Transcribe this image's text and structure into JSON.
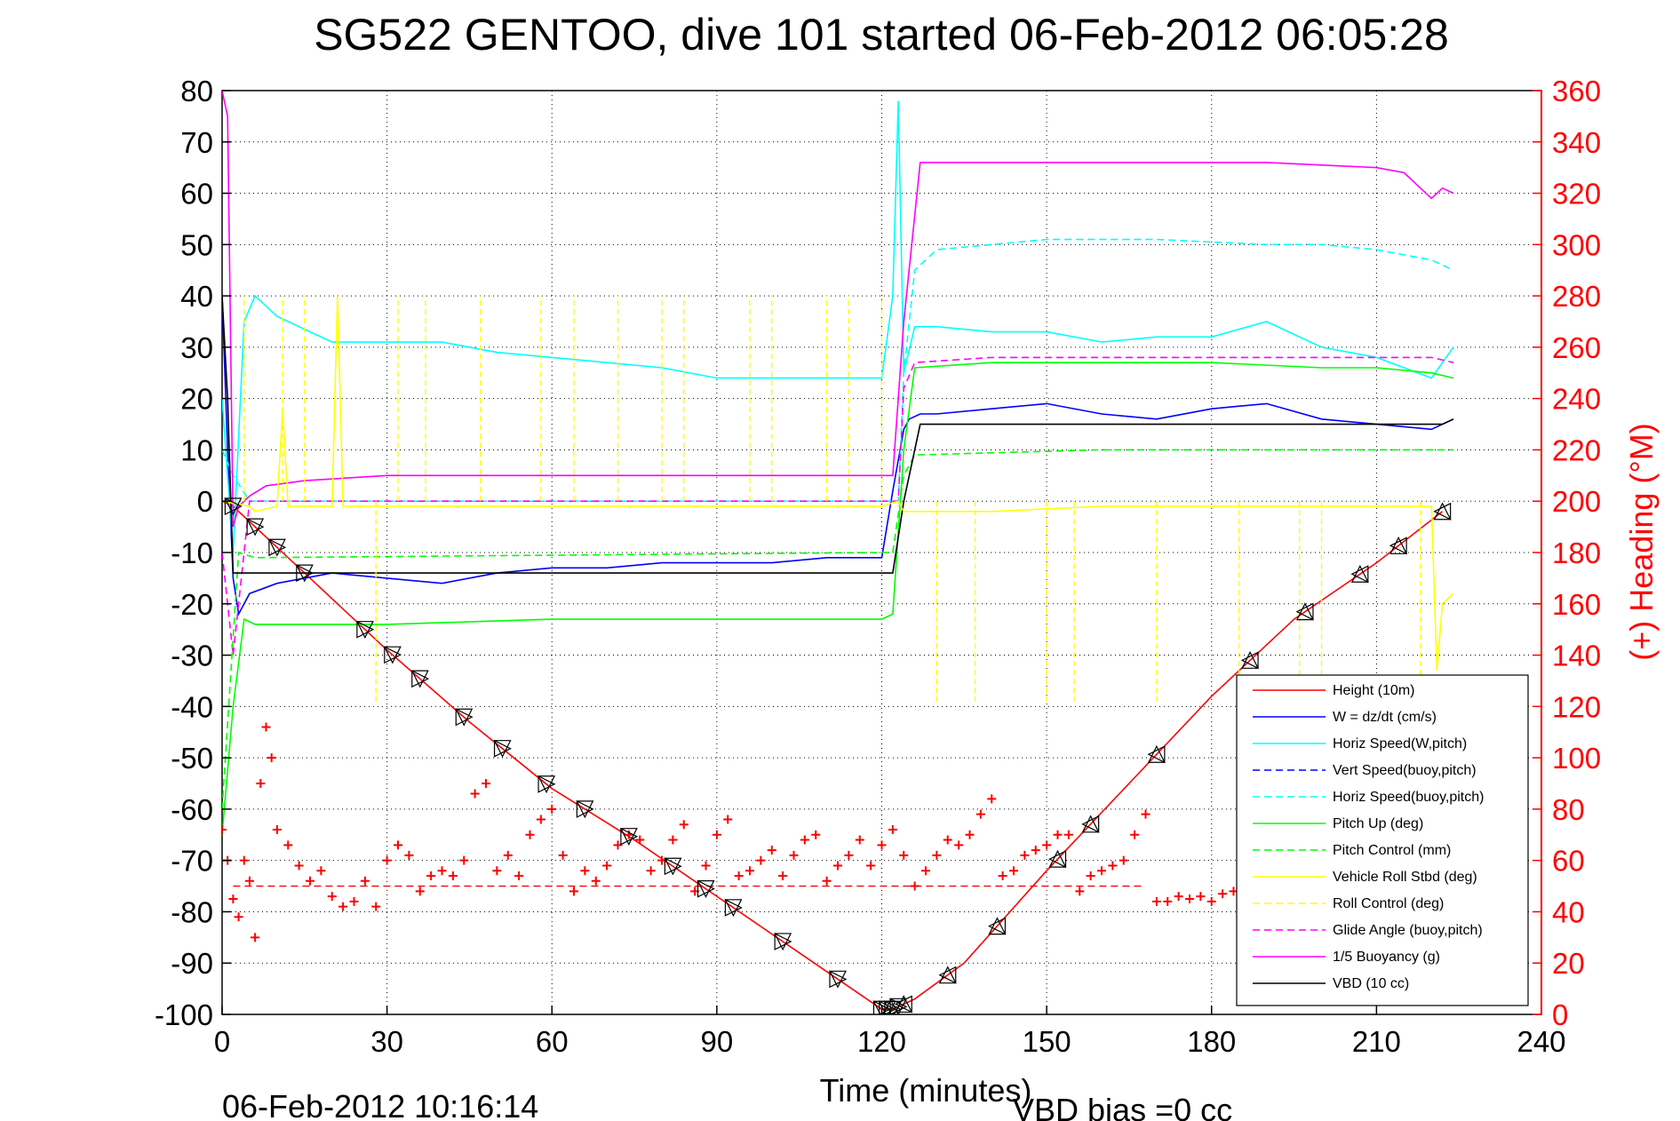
{
  "chart_data": {
    "type": "line",
    "title": "SG522 GENTOO, dive 101 started 06-Feb-2012 06:05:28",
    "xlabel": "Time (minutes)",
    "ylabel_right": "(+) Heading (°M)",
    "footer_left": "06-Feb-2012 10:16:14",
    "footer_right": "VBD bias =0 cc",
    "xlim": [
      0,
      240
    ],
    "ylim": [
      -100,
      80
    ],
    "y2lim": [
      0,
      360
    ],
    "xticks": [
      "0",
      "30",
      "60",
      "90",
      "120",
      "150",
      "180",
      "210",
      "240"
    ],
    "yticks": [
      "80",
      "70",
      "60",
      "50",
      "40",
      "30",
      "20",
      "10",
      "0",
      "-10",
      "-20",
      "-30",
      "-40",
      "-50",
      "-60",
      "-70",
      "-80",
      "-90",
      "-100"
    ],
    "y2ticks": [
      "360",
      "340",
      "320",
      "300",
      "280",
      "260",
      "240",
      "220",
      "200",
      "180",
      "160",
      "140",
      "120",
      "100",
      "80",
      "60",
      "40",
      "20",
      "0"
    ],
    "grid": true,
    "legend_position": "bottom-right",
    "colors": {
      "height": "#ff0000",
      "w": "#0000ff",
      "horiz_speed": "#00ffff",
      "vert_speed_buoy": "#0000ff",
      "horiz_speed_buoy": "#00ffff",
      "pitch": "#00ff00",
      "pitch_control": "#00ff00",
      "roll": "#ffff00",
      "roll_control": "#ffff00",
      "glide_angle": "#ff00ff",
      "buoyancy": "#ff00ff",
      "vbd": "#000000",
      "heading": "#ff0000",
      "axis_right": "#ff0000"
    },
    "legend": [
      {
        "name": "Height (10m)",
        "color": "#ff0000",
        "dash": false
      },
      {
        "name": "W = dz/dt (cm/s)",
        "color": "#0000ff",
        "dash": false
      },
      {
        "name": "Horiz Speed(W,pitch)",
        "color": "#00ffff",
        "dash": false
      },
      {
        "name": "Vert Speed(buoy,pitch)",
        "color": "#0000ff",
        "dash": true
      },
      {
        "name": "Horiz Speed(buoy,pitch)",
        "color": "#00ffff",
        "dash": true
      },
      {
        "name": "Pitch Up (deg)",
        "color": "#00ff00",
        "dash": false
      },
      {
        "name": "Pitch Control (mm)",
        "color": "#00ff00",
        "dash": true
      },
      {
        "name": "Vehicle Roll Stbd (deg)",
        "color": "#ffff00",
        "dash": false
      },
      {
        "name": "Roll Control (deg)",
        "color": "#ffff00",
        "dash": true
      },
      {
        "name": "Glide Angle (buoy,pitch)",
        "color": "#ff00ff",
        "dash": true
      },
      {
        "name": "1/5 Buoyancy (g)",
        "color": "#ff00ff",
        "dash": false
      },
      {
        "name": "VBD (10 cc)",
        "color": "#000000",
        "dash": false
      }
    ],
    "series": [
      {
        "key": "height",
        "x": [
          0,
          2,
          15,
          30,
          45,
          60,
          75,
          90,
          105,
          120,
          122,
          124,
          126,
          135,
          150,
          165,
          180,
          195,
          210,
          222
        ],
        "y": [
          0,
          -1,
          -14,
          -29,
          -43,
          -56,
          -66,
          -77,
          -88,
          -99,
          -99,
          -98,
          -97,
          -90,
          -72,
          -55,
          -38,
          -23,
          -12,
          -2
        ]
      },
      {
        "key": "w",
        "x": [
          0,
          1,
          2,
          3,
          5,
          10,
          20,
          30,
          40,
          50,
          60,
          70,
          80,
          90,
          100,
          110,
          120,
          122,
          124,
          125,
          127,
          130,
          140,
          150,
          160,
          170,
          180,
          190,
          200,
          210,
          220,
          224
        ],
        "y": [
          40,
          10,
          -15,
          -22,
          -18,
          -16,
          -14,
          -15,
          -16,
          -14,
          -13,
          -13,
          -12,
          -12,
          -12,
          -11,
          -11,
          2,
          14,
          16,
          17,
          17,
          18,
          19,
          17,
          16,
          18,
          19,
          16,
          15,
          14,
          16
        ]
      },
      {
        "key": "horiz_speed",
        "x": [
          0,
          2,
          4,
          6,
          10,
          20,
          30,
          40,
          50,
          60,
          70,
          80,
          90,
          100,
          110,
          120,
          122,
          123,
          124,
          126,
          130,
          140,
          150,
          160,
          170,
          180,
          190,
          200,
          210,
          220,
          224
        ],
        "y": [
          20,
          -10,
          35,
          40,
          36,
          31,
          31,
          31,
          29,
          28,
          27,
          26,
          24,
          24,
          24,
          24,
          40,
          78,
          25,
          34,
          34,
          33,
          33,
          31,
          32,
          32,
          35,
          30,
          28,
          24,
          30
        ]
      },
      {
        "key": "horiz_speed_buoy",
        "x": [
          0,
          2,
          5,
          123,
          124,
          126,
          130,
          150,
          170,
          190,
          200,
          210,
          215,
          220,
          224
        ],
        "y": [
          10,
          5,
          0,
          0,
          25,
          45,
          49,
          51,
          51,
          50,
          50,
          49,
          48,
          47,
          45
        ]
      },
      {
        "key": "glide_angle",
        "x": [
          0,
          2,
          5,
          123,
          124,
          126,
          140,
          160,
          180,
          200,
          210,
          220,
          224
        ],
        "y": [
          -10,
          -30,
          0,
          0,
          22,
          27,
          28,
          28,
          28,
          28,
          28,
          28,
          27
        ]
      },
      {
        "key": "pitch",
        "x": [
          0,
          2,
          4,
          6,
          10,
          30,
          60,
          90,
          120,
          122,
          124,
          126,
          140,
          160,
          180,
          200,
          210,
          220,
          224
        ],
        "y": [
          -65,
          -40,
          -23,
          -24,
          -24,
          -24,
          -23,
          -23,
          -23,
          -22,
          10,
          26,
          27,
          27,
          27,
          26,
          26,
          25,
          24
        ]
      },
      {
        "key": "pitch_control",
        "x": [
          0,
          3,
          6,
          120,
          122,
          124,
          126,
          160,
          200,
          224
        ],
        "y": [
          -60,
          -10,
          -11,
          -10,
          -10,
          5,
          9,
          10,
          10,
          10
        ]
      },
      {
        "key": "buoyancy",
        "x": [
          0,
          1,
          2,
          3,
          5,
          8,
          15,
          30,
          60,
          90,
          120,
          122,
          124,
          127,
          130,
          160,
          190,
          210,
          215,
          218,
          220,
          222,
          224
        ],
        "y": [
          80,
          75,
          -5,
          -1,
          1,
          3,
          4,
          5,
          5,
          5,
          5,
          5,
          35,
          66,
          66,
          66,
          66,
          65,
          64,
          61,
          59,
          61,
          60
        ]
      },
      {
        "key": "vbd",
        "x": [
          0,
          1,
          2,
          3,
          4,
          120,
          122,
          124,
          127,
          180,
          210,
          222,
          224
        ],
        "y": [
          40,
          20,
          -14,
          -14,
          -14,
          -14,
          -14,
          0,
          15,
          15,
          15,
          15,
          16
        ]
      },
      {
        "key": "roll",
        "x": [
          0,
          5,
          6,
          10,
          11,
          12,
          20,
          21,
          22,
          30,
          40,
          60,
          80,
          90,
          100,
          120,
          123,
          124,
          125,
          130,
          135,
          140,
          160,
          200,
          210,
          220,
          221,
          222,
          224
        ],
        "y": [
          0,
          -1,
          -2,
          -1,
          18,
          -1,
          -1,
          40,
          -1,
          -1,
          -1,
          -1,
          -1,
          -1,
          -1,
          -1,
          0,
          -2,
          -2,
          -2,
          -2,
          -2,
          -1,
          -1,
          -1,
          -1,
          -33,
          -20,
          -18
        ]
      }
    ],
    "roll_spikes_up": [
      4,
      11,
      15,
      32,
      37,
      47,
      58,
      64,
      72,
      80,
      84,
      96,
      100,
      110,
      114,
      120
    ],
    "roll_spikes_down": [
      28,
      130,
      137,
      150,
      155,
      170,
      185,
      196,
      200,
      218
    ],
    "heading_points": [
      [
        0,
        72
      ],
      [
        1,
        60
      ],
      [
        2,
        45
      ],
      [
        3,
        38
      ],
      [
        4,
        60
      ],
      [
        5,
        52
      ],
      [
        6,
        30
      ],
      [
        7,
        90
      ],
      [
        8,
        112
      ],
      [
        9,
        100
      ],
      [
        10,
        72
      ],
      [
        12,
        66
      ],
      [
        14,
        58
      ],
      [
        16,
        52
      ],
      [
        18,
        56
      ],
      [
        20,
        46
      ],
      [
        22,
        42
      ],
      [
        24,
        44
      ],
      [
        26,
        52
      ],
      [
        28,
        42
      ],
      [
        30,
        60
      ],
      [
        32,
        66
      ],
      [
        34,
        62
      ],
      [
        36,
        48
      ],
      [
        38,
        54
      ],
      [
        40,
        56
      ],
      [
        42,
        54
      ],
      [
        44,
        60
      ],
      [
        46,
        86
      ],
      [
        48,
        90
      ],
      [
        50,
        56
      ],
      [
        52,
        62
      ],
      [
        54,
        54
      ],
      [
        56,
        70
      ],
      [
        58,
        76
      ],
      [
        60,
        80
      ],
      [
        62,
        62
      ],
      [
        64,
        48
      ],
      [
        66,
        56
      ],
      [
        68,
        52
      ],
      [
        70,
        58
      ],
      [
        72,
        66
      ],
      [
        74,
        70
      ],
      [
        76,
        68
      ],
      [
        78,
        56
      ],
      [
        80,
        60
      ],
      [
        82,
        68
      ],
      [
        84,
        74
      ],
      [
        86,
        48
      ],
      [
        88,
        58
      ],
      [
        90,
        70
      ],
      [
        92,
        76
      ],
      [
        94,
        54
      ],
      [
        96,
        56
      ],
      [
        98,
        60
      ],
      [
        100,
        64
      ],
      [
        102,
        54
      ],
      [
        104,
        62
      ],
      [
        106,
        68
      ],
      [
        108,
        70
      ],
      [
        110,
        52
      ],
      [
        112,
        58
      ],
      [
        114,
        62
      ],
      [
        116,
        68
      ],
      [
        118,
        58
      ],
      [
        120,
        66
      ],
      [
        122,
        72
      ],
      [
        124,
        62
      ],
      [
        126,
        50
      ],
      [
        128,
        56
      ],
      [
        130,
        62
      ],
      [
        132,
        68
      ],
      [
        134,
        66
      ],
      [
        136,
        70
      ],
      [
        138,
        78
      ],
      [
        140,
        84
      ],
      [
        142,
        54
      ],
      [
        144,
        56
      ],
      [
        146,
        62
      ],
      [
        148,
        64
      ],
      [
        150,
        66
      ],
      [
        152,
        70
      ],
      [
        154,
        70
      ],
      [
        156,
        48
      ],
      [
        158,
        54
      ],
      [
        160,
        56
      ],
      [
        162,
        58
      ],
      [
        164,
        60
      ],
      [
        166,
        70
      ],
      [
        168,
        78
      ],
      [
        170,
        44
      ],
      [
        172,
        44
      ],
      [
        174,
        46
      ],
      [
        176,
        45
      ],
      [
        178,
        46
      ],
      [
        180,
        44
      ],
      [
        182,
        47
      ],
      [
        184,
        48
      ],
      [
        186,
        52
      ]
    ],
    "heading_reference": 50,
    "markers_down": [
      2,
      6,
      10,
      15,
      26,
      31,
      36,
      44,
      51,
      59,
      66,
      74,
      82,
      88,
      93,
      102,
      112,
      120,
      121,
      122,
      123
    ],
    "markers_up": [
      124,
      132,
      141,
      152,
      158,
      170,
      187,
      197,
      207,
      214,
      222
    ]
  }
}
